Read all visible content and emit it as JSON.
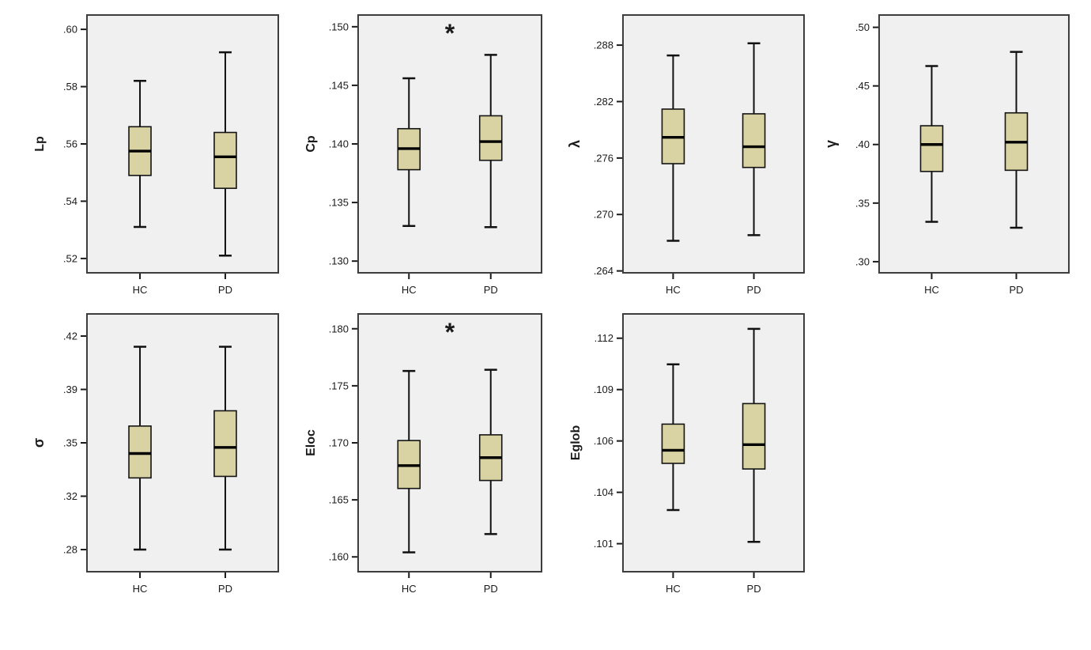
{
  "figure": {
    "description": "Box plots of graph network metrics comparing HC and PD groups",
    "groups": [
      "HC",
      "PD"
    ],
    "significance_marker": "*",
    "colors": {
      "box_fill": "#d9d3a3",
      "box_stroke": "#141414",
      "median_stroke": "#000000",
      "panel_background": "#f0f0f0",
      "panel_border": "#3d3d3d",
      "text": "#1a1a1a",
      "page_background": "#ffffff"
    }
  },
  "chart_data": [
    {
      "type": "box",
      "id": "lp",
      "ylabel": "Lp",
      "categories": [
        "HC",
        "PD"
      ],
      "significant": false,
      "ylim": [
        0.515,
        0.605
      ],
      "ytick_values": [
        0.52,
        0.54,
        0.56,
        0.58,
        0.6
      ],
      "ytick_labels": [
        ".52",
        ".54",
        ".56",
        ".58",
        ".60"
      ],
      "series": [
        {
          "name": "HC",
          "low": 0.531,
          "q1": 0.549,
          "median": 0.5575,
          "q3": 0.566,
          "high": 0.582
        },
        {
          "name": "PD",
          "low": 0.521,
          "q1": 0.5445,
          "median": 0.5555,
          "q3": 0.564,
          "high": 0.592
        }
      ]
    },
    {
      "type": "box",
      "id": "cp",
      "ylabel": "Cp",
      "categories": [
        "HC",
        "PD"
      ],
      "significant": true,
      "ylim": [
        0.129,
        0.151
      ],
      "ytick_values": [
        0.13,
        0.135,
        0.14,
        0.145,
        0.15
      ],
      "ytick_labels": [
        ".130",
        ".135",
        ".140",
        ".145",
        ".150"
      ],
      "series": [
        {
          "name": "HC",
          "low": 0.133,
          "q1": 0.1378,
          "median": 0.1396,
          "q3": 0.1413,
          "high": 0.1456
        },
        {
          "name": "PD",
          "low": 0.1329,
          "q1": 0.1386,
          "median": 0.1402,
          "q3": 0.1424,
          "high": 0.1476
        }
      ]
    },
    {
      "type": "box",
      "id": "lambda",
      "ylabel": "λ",
      "categories": [
        "HC",
        "PD"
      ],
      "significant": false,
      "ylim": [
        0.2638,
        0.2912
      ],
      "ytick_values": [
        0.264,
        0.27,
        0.276,
        0.282,
        0.288
      ],
      "ytick_labels": [
        ".264",
        ".270",
        ".276",
        ".282",
        ".288"
      ],
      "series": [
        {
          "name": "HC",
          "low": 0.2672,
          "q1": 0.2754,
          "median": 0.2782,
          "q3": 0.2812,
          "high": 0.2869
        },
        {
          "name": "PD",
          "low": 0.2678,
          "q1": 0.275,
          "median": 0.2772,
          "q3": 0.2807,
          "high": 0.2882
        }
      ]
    },
    {
      "type": "box",
      "id": "gamma",
      "ylabel": "γ",
      "categories": [
        "HC",
        "PD"
      ],
      "significant": false,
      "ylim": [
        0.2905,
        0.5105
      ],
      "ytick_values": [
        0.3,
        0.35,
        0.4,
        0.45,
        0.5
      ],
      "ytick_labels": [
        ".30",
        ".35",
        ".40",
        ".45",
        ".50"
      ],
      "series": [
        {
          "name": "HC",
          "low": 0.334,
          "q1": 0.377,
          "median": 0.4,
          "q3": 0.416,
          "high": 0.467
        },
        {
          "name": "PD",
          "low": 0.329,
          "q1": 0.378,
          "median": 0.402,
          "q3": 0.427,
          "high": 0.479
        }
      ]
    },
    {
      "type": "box",
      "id": "sigma",
      "ylabel": "σ",
      "categories": [
        "HC",
        "PD"
      ],
      "significant": false,
      "ylim": [
        0.2655,
        0.4345
      ],
      "ytick_values": [
        0.28,
        0.315,
        0.35,
        0.385,
        0.42
      ],
      "ytick_labels": [
        ".28",
        ".32",
        ".35",
        ".39",
        ".42"
      ],
      "series": [
        {
          "name": "HC",
          "low": 0.28,
          "q1": 0.327,
          "median": 0.343,
          "q3": 0.361,
          "high": 0.413
        },
        {
          "name": "PD",
          "low": 0.28,
          "q1": 0.328,
          "median": 0.347,
          "q3": 0.371,
          "high": 0.413
        }
      ]
    },
    {
      "type": "box",
      "id": "eloc",
      "ylabel": "Eloc",
      "categories": [
        "HC",
        "PD"
      ],
      "significant": true,
      "ylim": [
        0.1587,
        0.1813
      ],
      "ytick_values": [
        0.16,
        0.165,
        0.17,
        0.175,
        0.18
      ],
      "ytick_labels": [
        ".160",
        ".165",
        ".170",
        ".175",
        ".180"
      ],
      "series": [
        {
          "name": "HC",
          "low": 0.1604,
          "q1": 0.166,
          "median": 0.168,
          "q3": 0.1702,
          "high": 0.1763
        },
        {
          "name": "PD",
          "low": 0.162,
          "q1": 0.1667,
          "median": 0.1687,
          "q3": 0.1707,
          "high": 0.1764
        }
      ]
    },
    {
      "type": "box",
      "id": "eglob",
      "ylabel": "Eglob",
      "categories": [
        "HC",
        "PD"
      ],
      "significant": false,
      "ylim": [
        0.0995,
        0.1133
      ],
      "ytick_values": [
        0.101,
        0.10375,
        0.1065,
        0.10925,
        0.112
      ],
      "ytick_labels": [
        ".101",
        ".104",
        ".106",
        ".109",
        ".112"
      ],
      "series": [
        {
          "name": "HC",
          "low": 0.1028,
          "q1": 0.1053,
          "median": 0.106,
          "q3": 0.1074,
          "high": 0.1106
        },
        {
          "name": "PD",
          "low": 0.1011,
          "q1": 0.105,
          "median": 0.1063,
          "q3": 0.1085,
          "high": 0.1125
        }
      ]
    }
  ]
}
